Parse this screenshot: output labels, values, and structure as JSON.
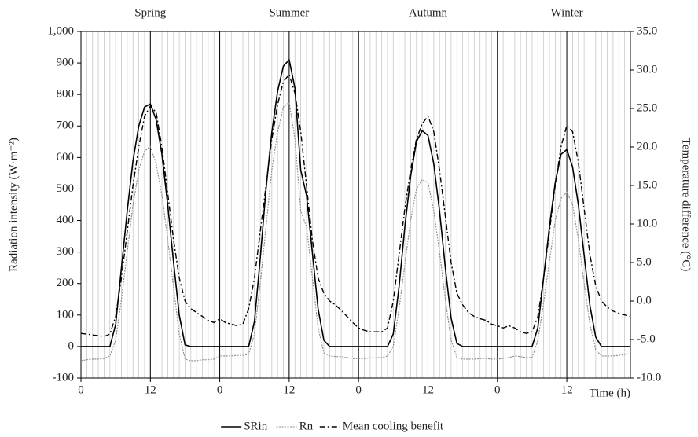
{
  "chart_data": {
    "type": "line",
    "annotations": [
      {
        "text": "Spring",
        "x": 12
      },
      {
        "text": "Summer",
        "x": 36
      },
      {
        "text": "Autumn",
        "x": 60
      },
      {
        "text": "Winter",
        "x": 84
      }
    ],
    "ylabel": "Radiation intensity (W·m⁻²)",
    "y2label": "Temperature difference (°C)",
    "xlabel": "Time (h)",
    "x": [
      0,
      1,
      2,
      3,
      4,
      5,
      6,
      7,
      8,
      9,
      10,
      11,
      12,
      13,
      14,
      15,
      16,
      17,
      18,
      19,
      20,
      21,
      22,
      23,
      24,
      25,
      26,
      27,
      28,
      29,
      30,
      31,
      32,
      33,
      34,
      35,
      36,
      37,
      38,
      39,
      40,
      41,
      42,
      43,
      44,
      45,
      46,
      47,
      48,
      49,
      50,
      51,
      52,
      53,
      54,
      55,
      56,
      57,
      58,
      59,
      60,
      61,
      62,
      63,
      64,
      65,
      66,
      67,
      68,
      69,
      70,
      71,
      72,
      73,
      74,
      75,
      76,
      77,
      78,
      79,
      80,
      81,
      82,
      83,
      84,
      85,
      86,
      87,
      88,
      89,
      90,
      91,
      92,
      93,
      94,
      95
    ],
    "xlim": [
      0,
      95
    ],
    "xticks": [
      0,
      12,
      {
        "value": 24,
        "label": "0"
      },
      {
        "value": 36,
        "label": "12"
      },
      {
        "value": 48,
        "label": "0"
      },
      {
        "value": 60,
        "label": "12"
      },
      {
        "value": 72,
        "label": "0"
      },
      {
        "value": 84,
        "label": "12"
      }
    ],
    "ylim": [
      -100,
      1000
    ],
    "yticks": [
      -100,
      0,
      100,
      200,
      300,
      400,
      500,
      600,
      700,
      800,
      900,
      {
        "value": 1000,
        "label": "1,000"
      }
    ],
    "y2lim": [
      -10,
      35
    ],
    "y2ticks": [
      {
        "value": -10,
        "label": "-10.0"
      },
      {
        "value": -5,
        "label": "-5.0"
      },
      {
        "value": 0,
        "label": "0.0"
      },
      {
        "value": 5,
        "label": "5.0"
      },
      {
        "value": 10,
        "label": "10.0"
      },
      {
        "value": 15,
        "label": "15.0"
      },
      {
        "value": 20,
        "label": "20.0"
      },
      {
        "value": 25,
        "label": "25.0"
      },
      {
        "value": 30,
        "label": "30.0"
      },
      {
        "value": 35,
        "label": "35.0"
      }
    ],
    "grid": true,
    "legend": "bottom",
    "series": [
      {
        "name": "SRin",
        "color": "#000000",
        "style": "solid",
        "values": [
          0,
          0,
          0,
          0,
          0,
          0,
          70,
          250,
          430,
          590,
          700,
          760,
          770,
          720,
          610,
          450,
          270,
          100,
          5,
          0,
          0,
          0,
          0,
          0,
          0,
          0,
          0,
          0,
          0,
          0,
          80,
          280,
          500,
          680,
          810,
          890,
          910,
          820,
          560,
          480,
          300,
          120,
          20,
          0,
          0,
          0,
          0,
          0,
          0,
          0,
          0,
          0,
          0,
          0,
          40,
          190,
          380,
          540,
          650,
          685,
          670,
          580,
          430,
          250,
          90,
          10,
          0,
          0,
          0,
          0,
          0,
          0,
          0,
          0,
          0,
          0,
          0,
          0,
          0,
          60,
          220,
          380,
          520,
          610,
          625,
          570,
          450,
          290,
          130,
          30,
          0,
          0,
          0,
          0,
          0,
          0
        ]
      },
      {
        "name": "Rn",
        "color": "#888888",
        "style": "dotted",
        "values": [
          -45,
          -42,
          -40,
          -40,
          -38,
          -30,
          20,
          150,
          300,
          450,
          560,
          620,
          635,
          580,
          480,
          340,
          190,
          40,
          -40,
          -45,
          -45,
          -42,
          -42,
          -40,
          -30,
          -30,
          -30,
          -28,
          -28,
          -25,
          40,
          200,
          380,
          560,
          680,
          760,
          775,
          660,
          430,
          380,
          220,
          60,
          -20,
          -30,
          -32,
          -32,
          -35,
          -38,
          -38,
          -38,
          -36,
          -36,
          -35,
          -30,
          0,
          120,
          260,
          400,
          500,
          530,
          520,
          430,
          300,
          150,
          20,
          -35,
          -40,
          -40,
          -40,
          -38,
          -38,
          -40,
          -40,
          -38,
          -35,
          -30,
          -32,
          -35,
          -35,
          20,
          140,
          270,
          400,
          470,
          490,
          450,
          340,
          200,
          70,
          -10,
          -30,
          -30,
          -30,
          -28,
          -25,
          -22
        ]
      },
      {
        "name": "Mean cooling benefit",
        "color": "#000000",
        "style": "dashdot",
        "axis": "y2",
        "values": [
          -4.2,
          -4.3,
          -4.4,
          -4.5,
          -4.6,
          -4.3,
          -2,
          3,
          9,
          15,
          20,
          24,
          25.3,
          24.5,
          20,
          14,
          8,
          3,
          0,
          -1,
          -1.5,
          -2,
          -2.5,
          -2.8,
          -2.3,
          -2.8,
          -3,
          -3.2,
          -3,
          -1,
          3,
          9,
          15,
          21,
          25.5,
          28.5,
          29.4,
          27,
          22,
          15,
          8,
          3,
          1,
          0,
          -0.5,
          -1.2,
          -2,
          -2.8,
          -3.5,
          -3.8,
          -4,
          -4,
          -4,
          -3.5,
          0,
          6,
          12,
          17,
          21,
          23,
          24,
          22,
          17,
          11,
          5,
          1,
          -0.5,
          -1.5,
          -2,
          -2.3,
          -2.5,
          -3,
          -3.2,
          -3.5,
          -3.2,
          -3.5,
          -4,
          -4.2,
          -4,
          -2,
          3,
          9,
          15,
          20,
          22.8,
          22,
          18,
          12,
          6,
          2,
          0,
          -0.8,
          -1.3,
          -1.6,
          -1.8,
          -2
        ]
      }
    ]
  }
}
